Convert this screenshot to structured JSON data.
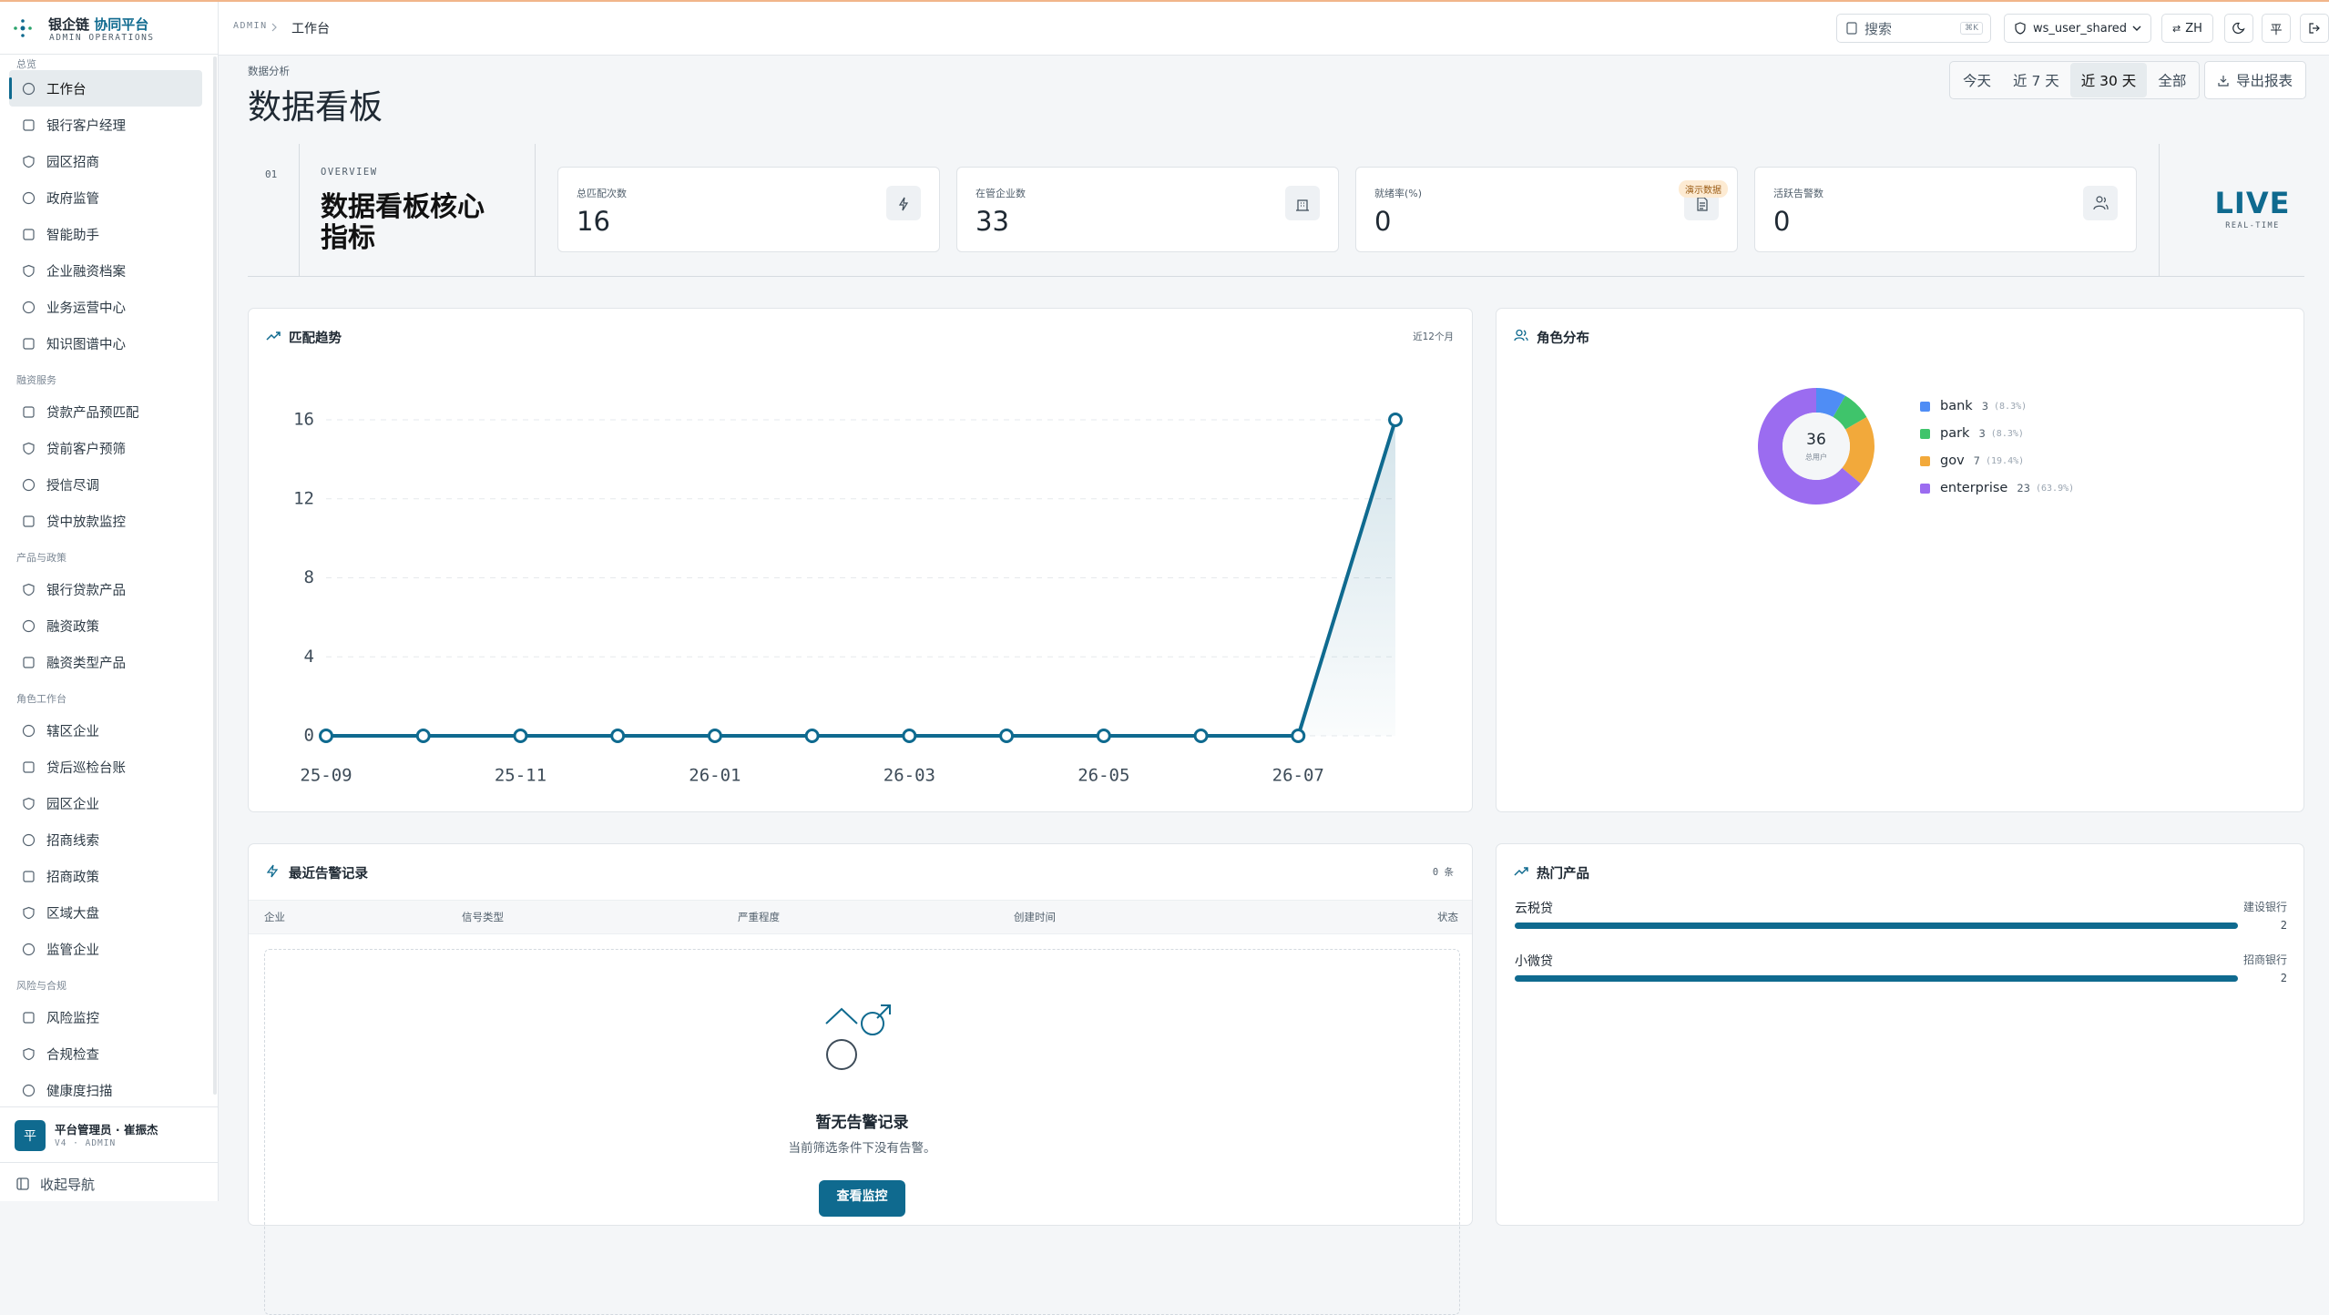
{
  "sidebar": {
    "brand": {
      "name": "银企链",
      "name_accent": "协同平台",
      "subtitle": "ADMIN OPERATIONS"
    },
    "groups": [
      {
        "label": "总览",
        "items": [
          {
            "label": "工作台",
            "active": true
          },
          {
            "label": "银行客户经理"
          },
          {
            "label": "园区招商"
          },
          {
            "label": "政府监管"
          },
          {
            "label": "智能助手"
          },
          {
            "label": "企业融资档案"
          },
          {
            "label": "业务运营中心"
          },
          {
            "label": "知识图谱中心"
          }
        ]
      },
      {
        "label": "融资服务",
        "items": [
          {
            "label": "贷款产品预匹配"
          },
          {
            "label": "贷前客户预筛"
          },
          {
            "label": "授信尽调"
          },
          {
            "label": "贷中放款监控"
          }
        ]
      },
      {
        "label": "产品与政策",
        "items": [
          {
            "label": "银行贷款产品"
          },
          {
            "label": "融资政策"
          },
          {
            "label": "融资类型产品"
          }
        ]
      },
      {
        "label": "角色工作台",
        "items": [
          {
            "label": "辖区企业"
          },
          {
            "label": "贷后巡检台账"
          },
          {
            "label": "园区企业"
          },
          {
            "label": "招商线索"
          },
          {
            "label": "招商政策"
          },
          {
            "label": "区域大盘"
          },
          {
            "label": "监管企业"
          }
        ]
      },
      {
        "label": "风险与合规",
        "items": [
          {
            "label": "风险监控"
          },
          {
            "label": "合规检查"
          },
          {
            "label": "健康度扫描"
          }
        ]
      }
    ],
    "user": {
      "avatar": "平",
      "name": "平台管理员 · 崔振杰",
      "role": "V4 · ADMIN"
    },
    "collapse": "收起导航"
  },
  "topbar": {
    "breadcrumb": [
      "ADMIN",
      "工作台"
    ],
    "search": "搜索",
    "shortcut": "⌘K",
    "account": "ws_user_shared",
    "language": "ZH",
    "workspace": "平"
  },
  "header": {
    "eyebrow": "数据分析",
    "title": "数据看板",
    "ranges": [
      {
        "label": "今天"
      },
      {
        "label": "近 7 天"
      },
      {
        "label": "近 30 天",
        "active": true
      },
      {
        "label": "全部"
      }
    ],
    "export": "导出报表"
  },
  "overview": {
    "index": "01",
    "eyebrow": "OVERVIEW",
    "title": "数据看板核心指标",
    "kpis": [
      {
        "label": "总匹配次数",
        "value": 16
      },
      {
        "label": "在管企业数",
        "value": 33
      },
      {
        "label": "就绪率(%)",
        "value": 0,
        "badge": "演示数据"
      },
      {
        "label": "活跃告警数",
        "value": 0
      }
    ],
    "live": "LIVE",
    "live_sub": "REAL-TIME"
  },
  "chart_data": [
    {
      "type": "line",
      "title": "匹配趋势",
      "subtitle": "近12个月",
      "categories": [
        "25-09",
        null,
        "25-11",
        null,
        "26-01",
        null,
        "26-03",
        null,
        "26-05",
        null,
        "26-07",
        null
      ],
      "values": [
        0,
        0,
        0,
        0,
        0,
        0,
        0,
        0,
        0,
        0,
        0,
        16
      ],
      "color": "#0f6a8f",
      "ylim": [
        0,
        16
      ],
      "yticks": [
        0,
        4,
        8,
        12,
        16
      ],
      "grid": true
    },
    {
      "type": "donut",
      "title": "角色分布",
      "categories": [
        "bank",
        "park",
        "gov",
        "enterprise"
      ],
      "values": [
        3,
        3,
        7,
        23
      ],
      "share_labels": [
        "(8.3%)",
        "(8.3%)",
        "(19.4%)",
        "(63.9%)"
      ],
      "colors": [
        "#4f8df5",
        "#3fc46b",
        "#f2a93b",
        "#9b6cf0"
      ],
      "total": 36,
      "total_label": "总用户"
    }
  ],
  "alerts": {
    "title": "最近告警记录",
    "count": "0 条",
    "columns": [
      "企业",
      "信号类型",
      "严重程度",
      "创建时间",
      "状态"
    ],
    "empty": {
      "title": "暂无告警记录",
      "text": "当前筛选条件下没有告警。",
      "action": "查看监控"
    }
  },
  "hot_products": {
    "title": "热门产品",
    "items": [
      {
        "name": "云税贷",
        "bank": "建设银行",
        "value": 2
      },
      {
        "name": "小微贷",
        "bank": "招商银行",
        "value": 2
      }
    ]
  }
}
